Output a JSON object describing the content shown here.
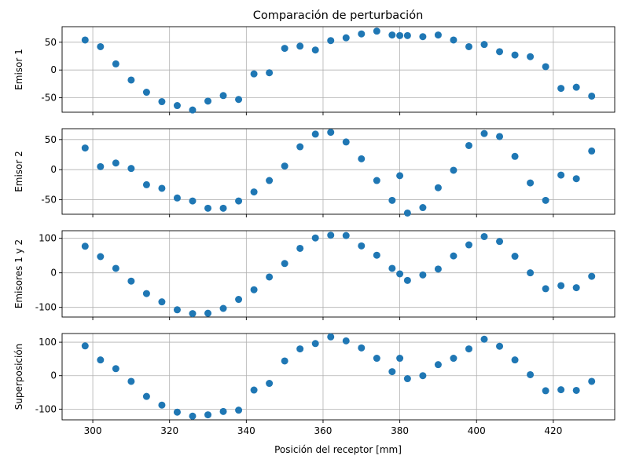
{
  "chart_data": {
    "type": "scatter",
    "title": "Comparación de perturbación",
    "xlabel": "Posición del receptor [mm]",
    "xlim": [
      292,
      436
    ],
    "xticks": [
      300,
      320,
      340,
      360,
      380,
      400,
      420
    ],
    "x": [
      298,
      302,
      306,
      310,
      314,
      318,
      322,
      326,
      330,
      334,
      338,
      342,
      346,
      350,
      354,
      358,
      362,
      366,
      370,
      374,
      378,
      380,
      382,
      386,
      390,
      394,
      398,
      402,
      406,
      410,
      414,
      418,
      422,
      426,
      430
    ],
    "grid": true,
    "color": "#1f77b4",
    "subplots": [
      {
        "ylabel": "Emisor 1",
        "ylim": [
          -76,
          78
        ],
        "yticks": [
          -50,
          0,
          50
        ],
        "values": [
          54,
          42,
          11,
          -18,
          -40,
          -57,
          -64,
          -72,
          -56,
          -46,
          -53,
          -7,
          -5,
          39,
          43,
          36,
          53,
          58,
          65,
          70,
          63,
          62,
          62,
          60,
          63,
          54,
          42,
          46,
          33,
          27,
          24,
          6,
          -33,
          -31,
          -47
        ]
      },
      {
        "ylabel": "Emisor 2",
        "ylim": [
          -74,
          68
        ],
        "yticks": [
          -50,
          0,
          50
        ],
        "values": [
          36,
          5,
          11,
          2,
          -25,
          -31,
          -47,
          -52,
          -64,
          -64,
          -52,
          -37,
          -18,
          6,
          38,
          59,
          62,
          46,
          18,
          -18,
          -51,
          -10,
          -72,
          -63,
          -30,
          -1,
          40,
          60,
          55,
          22,
          -22,
          -51,
          -9,
          -15,
          31
        ]
      },
      {
        "ylabel": "Emisores 1 y 2",
        "ylim": [
          -128,
          122
        ],
        "yticks": [
          -100,
          0,
          100
        ],
        "values": [
          77,
          47,
          13,
          -24,
          -60,
          -84,
          -107,
          -118,
          -117,
          -103,
          -77,
          -49,
          -12,
          27,
          71,
          101,
          109,
          108,
          78,
          51,
          13,
          -3,
          -22,
          -6,
          11,
          49,
          81,
          105,
          91,
          48,
          0,
          -46,
          -37,
          -43,
          -10
        ]
      },
      {
        "ylabel": "Superposición",
        "ylim": [
          -132,
          126
        ],
        "yticks": [
          -100,
          0,
          100
        ],
        "values": [
          89,
          47,
          21,
          -17,
          -62,
          -88,
          -109,
          -121,
          -117,
          -107,
          -103,
          -43,
          -23,
          44,
          80,
          96,
          116,
          104,
          83,
          52,
          12,
          52,
          -9,
          0,
          33,
          52,
          80,
          109,
          88,
          47,
          3,
          -45,
          -42,
          -44,
          -17
        ]
      }
    ]
  }
}
